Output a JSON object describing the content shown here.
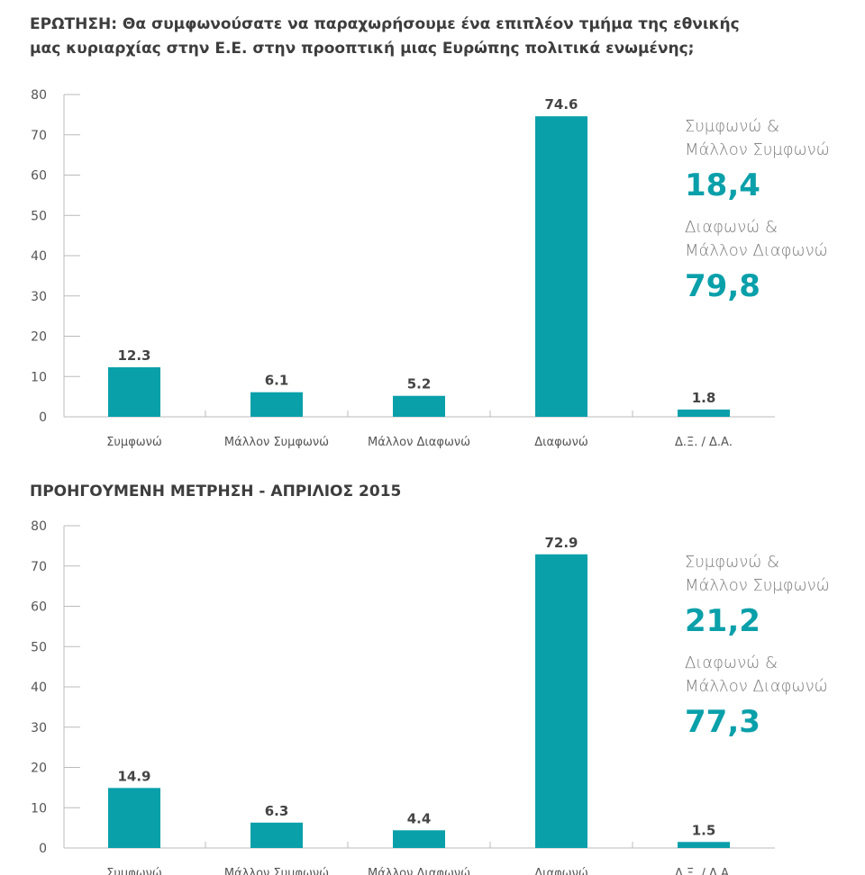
{
  "accent": "#0aa0aa",
  "chart_data": [
    {
      "type": "bar",
      "title": "ΕΡΩΤΗΣΗ: Θα συμφωνούσατε να παραχωρήσουμε ένα επιπλέον τμήμα της εθνικής μας κυριαρχίας στην Ε.Ε. στην προοπτική μιας Ευρώπης πολιτικά ενωμένης;",
      "title_lines": [
        "ΕΡΩΤΗΣΗ: Θα συμφωνούσατε να παραχωρήσουμε ένα επιπλέον τμήμα της εθνικής",
        "μας κυριαρχίας στην Ε.Ε. στην προοπτική μιας Ευρώπης πολιτικά ενωμένης;"
      ],
      "categories": [
        "Συμφωνώ",
        "Μάλλον Συμφωνώ",
        "Μάλλον Διαφωνώ",
        "Διαφωνώ",
        "Δ.Ξ. / Δ.Α."
      ],
      "values": [
        12.3,
        6.1,
        5.2,
        74.6,
        1.8
      ],
      "labels": [
        "12.3",
        "6.1",
        "5.2",
        "74.6",
        "1.8"
      ],
      "ylim": [
        0,
        80
      ],
      "yticks": [
        0,
        10,
        20,
        30,
        40,
        50,
        60,
        70,
        80
      ],
      "summary": [
        {
          "label1": "Συμφωνώ &",
          "label2": "Μάλλον Συμφωνώ",
          "value": "18,4"
        },
        {
          "label1": "Διαφωνώ &",
          "label2": "Μάλλον Διαφωνώ",
          "value": "79,8"
        }
      ]
    },
    {
      "type": "bar",
      "title": "ΠΡΟΗΓΟΥΜΕΝΗ ΜΕΤΡΗΣΗ - ΑΠΡΙΛΙΟΣ 2015",
      "title_lines": [
        "ΠΡΟΗΓΟΥΜΕΝΗ ΜΕΤΡΗΣΗ - ΑΠΡΙΛΙΟΣ 2015"
      ],
      "categories": [
        "Συμφωνώ",
        "Μάλλον Συμφωνώ",
        "Μάλλον Διαφωνώ",
        "Διαφωνώ",
        "Δ.Ξ. / Δ.Α."
      ],
      "values": [
        14.9,
        6.3,
        4.4,
        72.9,
        1.5
      ],
      "labels": [
        "14.9",
        "6.3",
        "4.4",
        "72.9",
        "1.5"
      ],
      "ylim": [
        0,
        80
      ],
      "yticks": [
        0,
        10,
        20,
        30,
        40,
        50,
        60,
        70,
        80
      ],
      "summary": [
        {
          "label1": "Συμφωνώ &",
          "label2": "Μάλλον Συμφωνώ",
          "value": "21,2"
        },
        {
          "label1": "Διαφωνώ &",
          "label2": "Μάλλον Διαφωνώ",
          "value": "77,3"
        }
      ]
    }
  ]
}
